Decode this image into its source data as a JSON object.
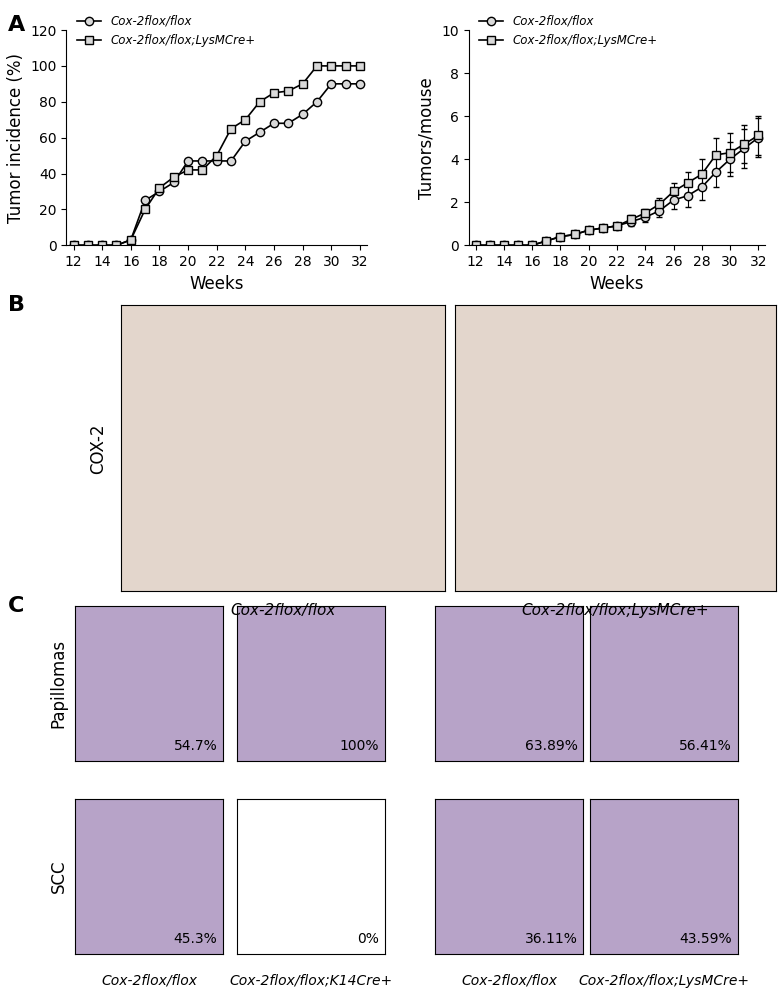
{
  "panel_labels": [
    "A",
    "B",
    "C"
  ],
  "chart_data": [
    {
      "type": "line",
      "xlabel": "Weeks",
      "ylabel": "Tumor incidence (%)",
      "x": [
        12,
        13,
        14,
        15,
        16,
        17,
        18,
        19,
        20,
        21,
        22,
        23,
        24,
        25,
        26,
        27,
        28,
        29,
        30,
        31,
        32
      ],
      "xlim": [
        11.5,
        32.5
      ],
      "xticks": [
        12,
        14,
        16,
        18,
        20,
        22,
        24,
        26,
        28,
        30,
        32
      ],
      "ylim": [
        0,
        120
      ],
      "yticks": [
        0,
        20,
        40,
        60,
        80,
        100,
        120
      ],
      "legend": "upper left",
      "series": [
        {
          "name": "Cox-2flox/flox",
          "color": "#000000",
          "marker": "o",
          "line_style": "solid",
          "values": [
            0,
            0,
            0,
            0,
            3,
            25,
            30,
            35,
            47,
            47,
            47,
            47,
            58,
            63,
            68,
            68,
            73,
            80,
            90,
            90,
            90
          ]
        },
        {
          "name": "Cox-2flox/flox;LysMCre+",
          "color": "#000000",
          "marker": "s",
          "line_style": "solid",
          "values": [
            0,
            0,
            0,
            0,
            3,
            20,
            32,
            38,
            42,
            42,
            50,
            65,
            70,
            80,
            85,
            86,
            90,
            100,
            100,
            100,
            100
          ]
        }
      ]
    },
    {
      "type": "line",
      "xlabel": "Weeks",
      "ylabel": "Tumors/mouse",
      "x": [
        12,
        13,
        14,
        15,
        16,
        17,
        18,
        19,
        20,
        21,
        22,
        23,
        24,
        25,
        26,
        27,
        28,
        29,
        30,
        31,
        32
      ],
      "xlim": [
        11.5,
        32.5
      ],
      "xticks": [
        12,
        14,
        16,
        18,
        20,
        22,
        24,
        26,
        28,
        30,
        32
      ],
      "ylim": [
        0,
        10
      ],
      "yticks": [
        0,
        2,
        4,
        6,
        8,
        10
      ],
      "legend": "upper left",
      "series": [
        {
          "name": "Cox-2flox/flox",
          "color": "#000000",
          "marker": "o",
          "line_style": "solid",
          "values": [
            0,
            0,
            0,
            0,
            0,
            0.2,
            0.4,
            0.5,
            0.7,
            0.8,
            0.9,
            1.1,
            1.3,
            1.6,
            2.1,
            2.3,
            2.7,
            3.4,
            4.0,
            4.5,
            5.0
          ],
          "errors": [
            0,
            0,
            0,
            0,
            0,
            0.1,
            0.1,
            0.1,
            0.1,
            0.1,
            0.1,
            0.2,
            0.2,
            0.3,
            0.4,
            0.5,
            0.6,
            0.7,
            0.8,
            0.9,
            0.9
          ]
        },
        {
          "name": "Cox-2flox/flox;LysMCre+",
          "color": "#000000",
          "marker": "s",
          "line_style": "solid",
          "values": [
            0,
            0,
            0,
            0,
            0,
            0.2,
            0.4,
            0.5,
            0.7,
            0.8,
            0.9,
            1.2,
            1.5,
            1.9,
            2.5,
            2.9,
            3.3,
            4.2,
            4.3,
            4.7,
            5.1
          ],
          "errors": [
            0,
            0,
            0,
            0,
            0,
            0.1,
            0.1,
            0.1,
            0.1,
            0.1,
            0.1,
            0.2,
            0.2,
            0.3,
            0.4,
            0.5,
            0.7,
            0.8,
            0.9,
            0.9,
            0.9
          ]
        }
      ]
    }
  ],
  "panel_b": {
    "row_label": "COX-2",
    "captions": [
      "Cox-2flox/flox",
      "Cox-2flox/flox;LysMCre+"
    ]
  },
  "panel_c": {
    "row_labels": [
      "Papillomas",
      "SCC"
    ],
    "groups": [
      {
        "caption": "Cox-2flox/flox",
        "papillomas": "54.7%",
        "scc": "45.3%"
      },
      {
        "caption": "Cox-2flox/flox;K14Cre+",
        "papillomas": "100%",
        "scc": "0%"
      },
      {
        "caption": "Cox-2flox/flox",
        "papillomas": "63.89%",
        "scc": "36.11%"
      },
      {
        "caption": "Cox-2flox/flox;LysMCre+",
        "papillomas": "56.41%",
        "scc": "43.59%"
      }
    ]
  }
}
